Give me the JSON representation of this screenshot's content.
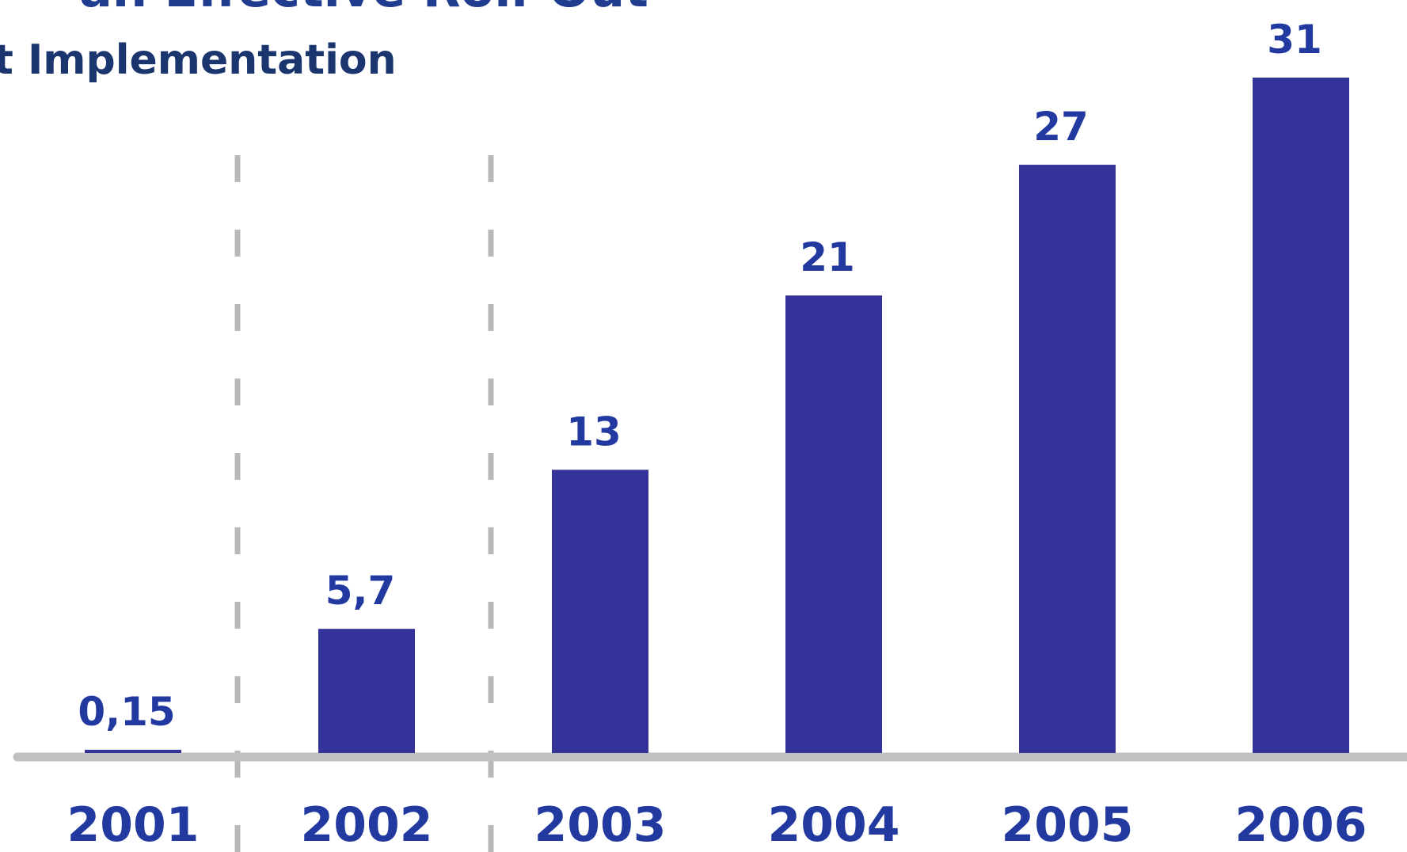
{
  "header": {
    "title": "an Effective Roll-Out",
    "subtitle": "t Implementation"
  },
  "colors": {
    "bar": "#333399",
    "labels": "#2239a0",
    "title": "#1f3c8f",
    "subtitle": "#1b356e",
    "axis": "#c0c0c0",
    "divider": "#b8b8b8"
  },
  "chart_data": {
    "type": "bar",
    "categories": [
      "2001",
      "2002",
      "2003",
      "2004",
      "2005",
      "2006"
    ],
    "values": [
      0.15,
      5.7,
      13,
      21,
      27,
      31
    ],
    "data_labels": [
      "0,15",
      "5,7",
      "13",
      "21",
      "27",
      "31"
    ],
    "title": "an Effective Roll-Out",
    "subtitle": "t Implementation",
    "xlabel": "",
    "ylabel": "",
    "ylim": [
      0,
      31
    ],
    "grid": false,
    "legend": "none",
    "phase_dividers_after_categories": [
      "2001",
      "2002"
    ]
  }
}
